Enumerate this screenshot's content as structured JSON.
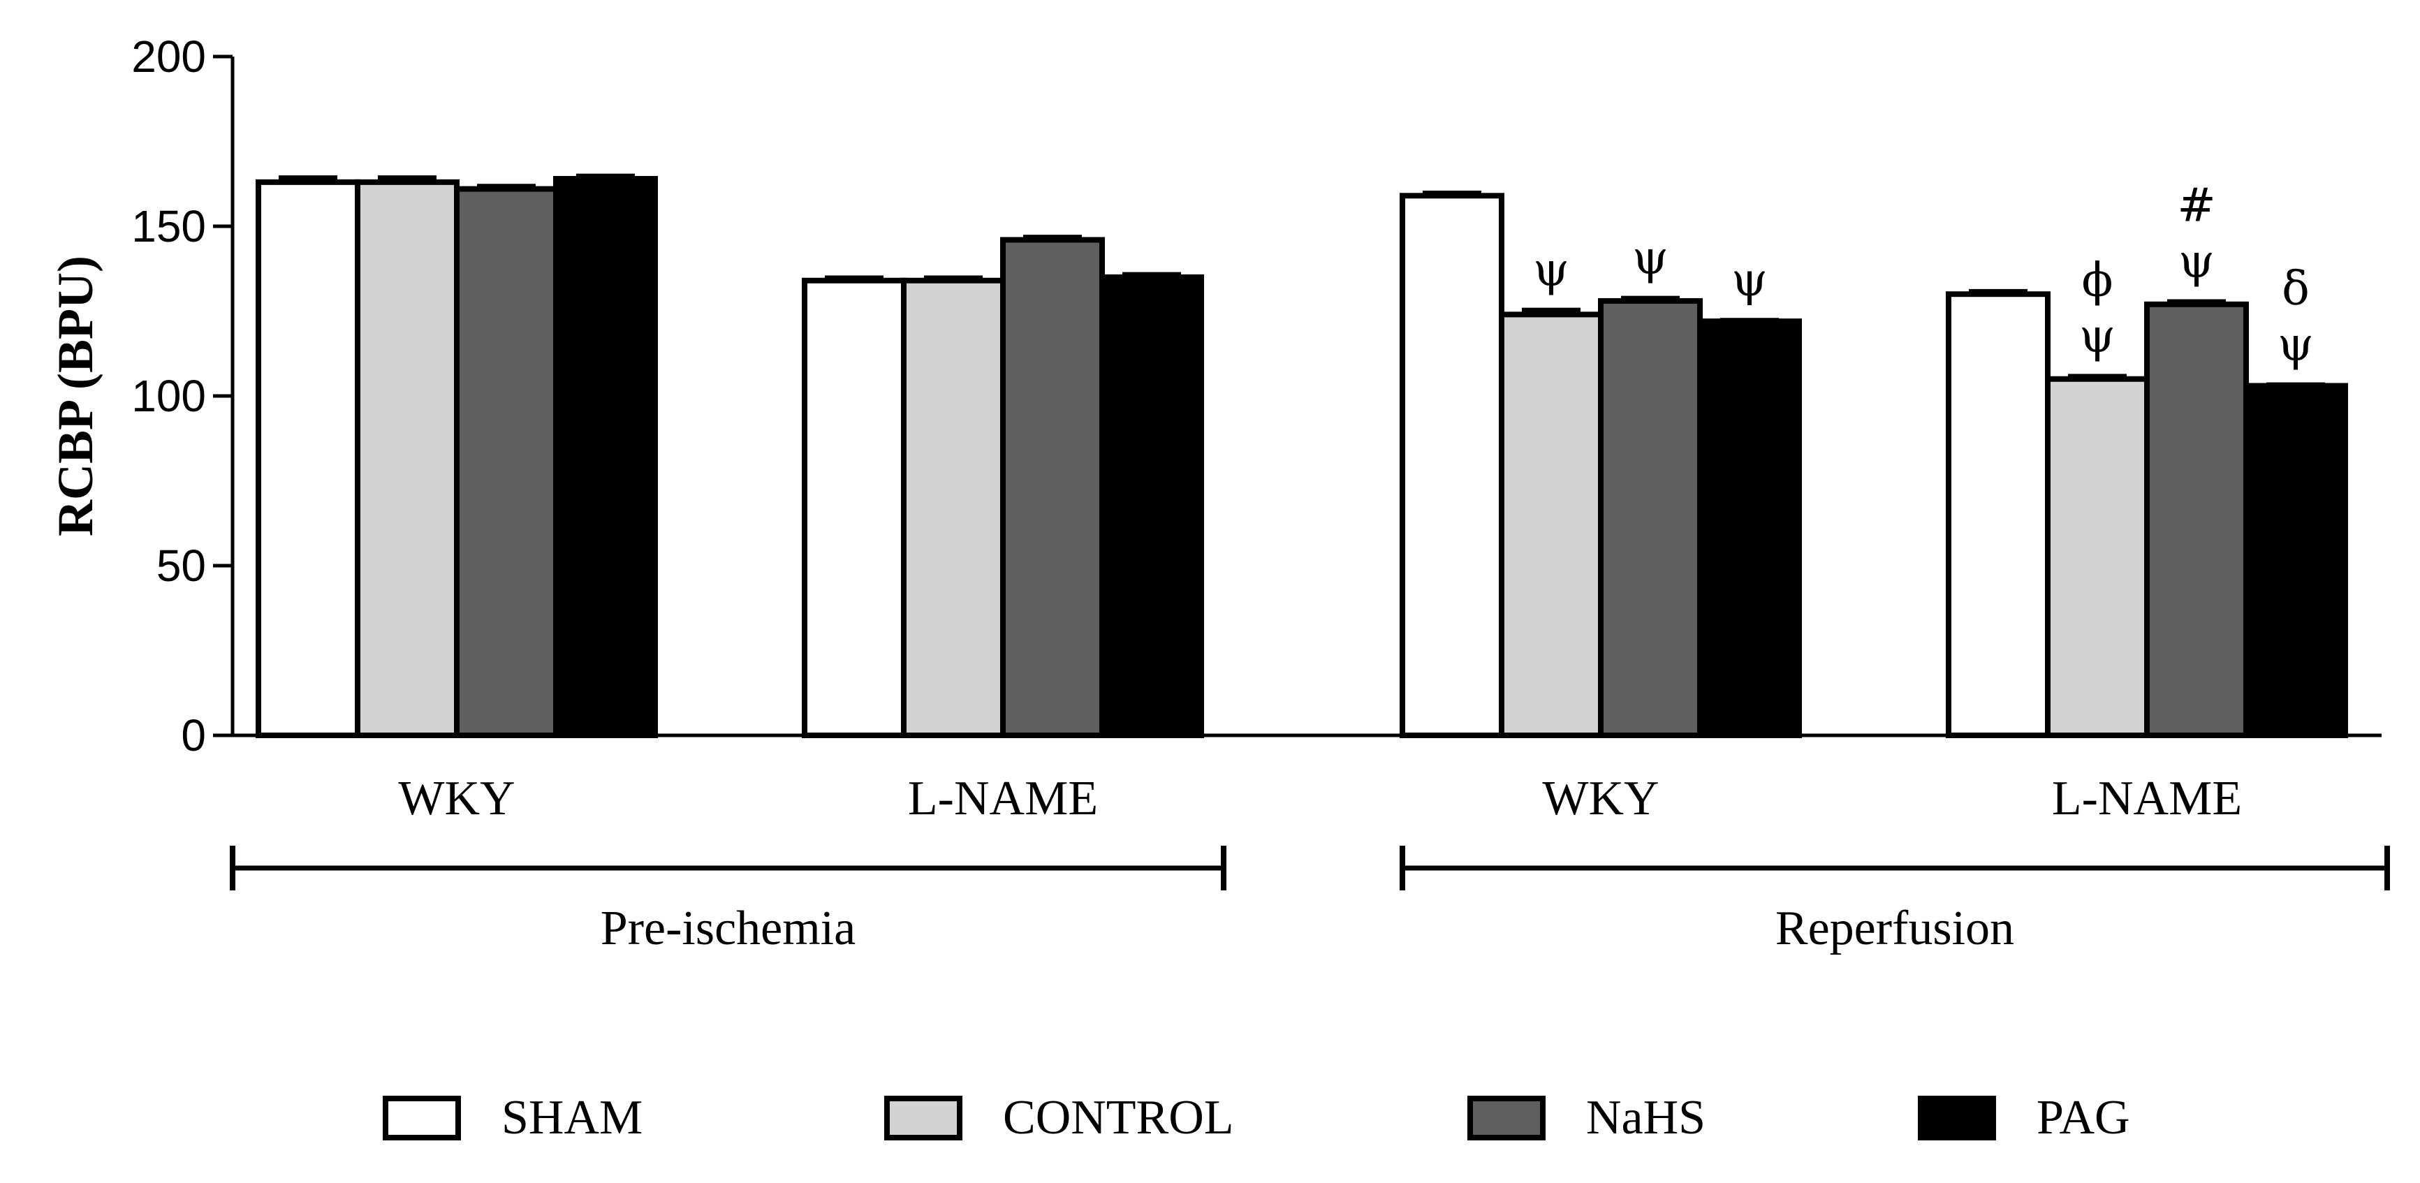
{
  "chart_data": {
    "type": "bar",
    "title": "",
    "xlabel": "",
    "ylabel": "RCBP (BPU)",
    "ylim": [
      0,
      200
    ],
    "yticks": [
      0,
      50,
      100,
      150,
      200
    ],
    "grid": false,
    "categories": [
      "WKY",
      "L-NAME",
      "WKY",
      "L-NAME"
    ],
    "phases": [
      {
        "label": "Pre-ischemia",
        "categories": [
          0,
          1
        ]
      },
      {
        "label": "Reperfusion",
        "categories": [
          2,
          3
        ]
      }
    ],
    "series": [
      {
        "name": "SHAM",
        "color": "#ffffff",
        "values": [
          163,
          134,
          159,
          130
        ],
        "errors": [
          2,
          1.5,
          1.5,
          1.5
        ]
      },
      {
        "name": "CONTROL",
        "color": "#d3d3d3",
        "values": [
          163,
          134,
          124,
          105
        ],
        "errors": [
          2,
          1.5,
          2,
          1.5
        ]
      },
      {
        "name": "NaHS",
        "color": "#5f5f5f",
        "values": [
          161,
          146,
          128,
          127
        ],
        "errors": [
          1.5,
          1.5,
          1.5,
          1.5
        ]
      },
      {
        "name": "PAG",
        "color": "#000000",
        "values": [
          164,
          135,
          122,
          103
        ],
        "errors": [
          1.5,
          1.5,
          1,
          1
        ]
      }
    ],
    "annotations": [
      {
        "category": 2,
        "series": 1,
        "lines": [
          "ψ"
        ]
      },
      {
        "category": 2,
        "series": 2,
        "lines": [
          "ψ"
        ]
      },
      {
        "category": 2,
        "series": 3,
        "lines": [
          "ψ"
        ]
      },
      {
        "category": 3,
        "series": 1,
        "lines": [
          "ϕ",
          "ψ"
        ]
      },
      {
        "category": 3,
        "series": 2,
        "lines": [
          "#",
          "ψ"
        ]
      },
      {
        "category": 3,
        "series": 3,
        "lines": [
          "δ",
          "ψ"
        ]
      }
    ],
    "legend": {
      "position": "bottom",
      "entries": [
        "SHAM",
        "CONTROL",
        "NaHS",
        "PAG"
      ]
    }
  }
}
